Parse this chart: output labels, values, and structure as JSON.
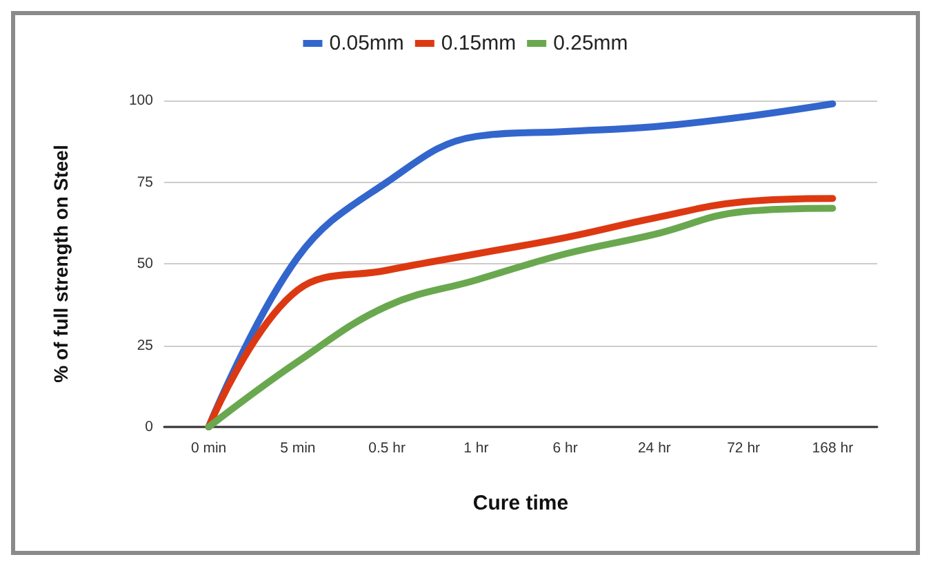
{
  "chart_data": {
    "type": "line",
    "xlabel": "Cure time",
    "ylabel": "% of full strength on Steel",
    "categories": [
      "0 min",
      "5 min",
      "0.5 hr",
      "1 hr",
      "6 hr",
      "24 hr",
      "72 hr",
      "168 hr"
    ],
    "series": [
      {
        "name": "0.05mm",
        "color": "#3366cc",
        "values": [
          0,
          52,
          75,
          89,
          90.5,
          92,
          95,
          99
        ]
      },
      {
        "name": "0.15mm",
        "color": "#dc3912",
        "values": [
          0,
          42,
          48,
          53,
          58,
          64,
          69,
          70
        ]
      },
      {
        "name": "0.25mm",
        "color": "#6aa84f",
        "values": [
          0,
          20,
          37,
          45,
          53,
          59,
          66,
          67
        ]
      }
    ],
    "ylim": [
      0,
      100
    ],
    "yticks": [
      0,
      25,
      50,
      75,
      100
    ],
    "grid": "y",
    "legend": "top",
    "marker": "none",
    "line_style": "solid"
  }
}
